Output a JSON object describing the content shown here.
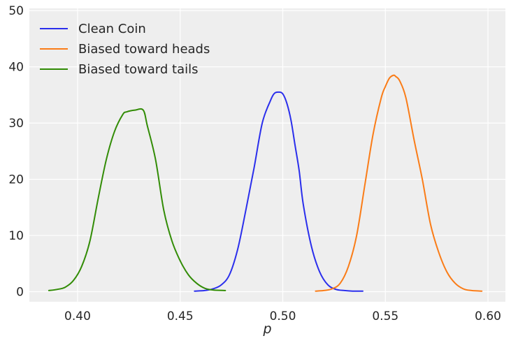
{
  "chart_data": {
    "type": "line",
    "title": "",
    "xlabel": "p",
    "ylabel": "",
    "xlim": [
      0.3765,
      0.6085
    ],
    "ylim": [
      -1.8,
      50.4
    ],
    "xticks": [
      0.4,
      0.45,
      0.5,
      0.55,
      0.6
    ],
    "xtick_labels": [
      "0.40",
      "0.45",
      "0.50",
      "0.55",
      "0.60"
    ],
    "yticks": [
      0,
      10,
      20,
      30,
      40,
      50
    ],
    "ytick_labels": [
      "0",
      "10",
      "20",
      "30",
      "40",
      "50"
    ],
    "grid": true,
    "legend_position": "top-left",
    "series": [
      {
        "name": "Clean Coin",
        "color": "#2a2eec",
        "x": [
          0.457,
          0.462,
          0.466,
          0.47,
          0.474,
          0.478,
          0.482,
          0.486,
          0.49,
          0.494,
          0.496,
          0.498,
          0.5,
          0.502,
          0.504,
          0.506,
          0.508,
          0.51,
          0.514,
          0.518,
          0.522,
          0.526,
          0.53,
          0.534,
          0.539
        ],
        "y": [
          0.1,
          0.2,
          0.5,
          1.2,
          3.0,
          7.5,
          14.5,
          22.0,
          30.0,
          34.0,
          35.3,
          35.5,
          35.2,
          33.5,
          30.5,
          26.0,
          21.5,
          15.5,
          8.0,
          3.5,
          1.2,
          0.4,
          0.2,
          0.1,
          0.1
        ]
      },
      {
        "name": "Biased toward heads",
        "color": "#fa7c17",
        "x": [
          0.516,
          0.52,
          0.524,
          0.528,
          0.532,
          0.536,
          0.54,
          0.544,
          0.548,
          0.55,
          0.552,
          0.554,
          0.555,
          0.557,
          0.56,
          0.564,
          0.568,
          0.572,
          0.576,
          0.58,
          0.584,
          0.588,
          0.592,
          0.597
        ],
        "y": [
          0.1,
          0.2,
          0.5,
          1.5,
          4.5,
          10.0,
          19.0,
          28.0,
          34.5,
          36.5,
          38.0,
          38.5,
          38.3,
          37.5,
          34.5,
          27.0,
          20.0,
          12.0,
          7.0,
          3.5,
          1.5,
          0.5,
          0.2,
          0.1
        ]
      },
      {
        "name": "Biased toward tails",
        "color": "#328c06",
        "x": [
          0.386,
          0.39,
          0.394,
          0.398,
          0.402,
          0.406,
          0.41,
          0.414,
          0.418,
          0.422,
          0.424,
          0.428,
          0.432,
          0.434,
          0.438,
          0.442,
          0.446,
          0.45,
          0.454,
          0.458,
          0.462,
          0.466,
          0.472
        ],
        "y": [
          0.2,
          0.4,
          0.8,
          2.0,
          4.5,
          9.0,
          16.5,
          23.5,
          28.5,
          31.5,
          32.0,
          32.3,
          32.3,
          29.5,
          23.5,
          14.5,
          9.0,
          5.5,
          3.0,
          1.5,
          0.6,
          0.3,
          0.2
        ]
      }
    ]
  }
}
